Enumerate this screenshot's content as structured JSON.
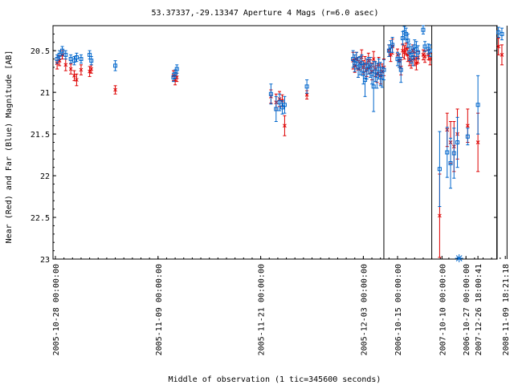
{
  "chart_data": {
    "type": "scatter",
    "title": "53.37337,-29.13347   Aperture 4 Mags (r=6.0 asec)",
    "xlabel": "Middle of observation (1 tic=345600 seconds)",
    "ylabel": "Near (Red) and Far (Blue) Magnitude [AB]",
    "y_inverted": true,
    "ylim": [
      23,
      20.2
    ],
    "y_ticks": [
      "20.5",
      "21",
      "21.5",
      "22",
      "22.5",
      "23"
    ],
    "x_ticks": [
      "2005-10-28 00:00:00",
      "2005-11-09 00:00:00",
      "2005-11-21 00:00:00",
      "2005-12-03 00:00:00",
      "2006-10-15 00:00:00",
      "2006-10-27 00:00:00",
      "2007-10-10 00:00:00",
      "2007-12-26 18:00:41",
      "2008-11-09 18:21:18"
    ],
    "x_units": "tic (1 tic = 345600 seconds), counted from 2005-10-28 00:00:00",
    "segment_breaks_after_tic": [
      9.6,
      11.0,
      12.9,
      13.2
    ],
    "grid": false,
    "legend": "none",
    "colors": {
      "near": "#dd0000",
      "far": "#0066cc",
      "frame": "#000000"
    },
    "series": [
      {
        "color": "#dd0000",
        "marker": "x",
        "points": [
          [
            0.05,
            20.65,
            0.07
          ],
          [
            0.12,
            20.62,
            0.06
          ],
          [
            0.2,
            20.55,
            0.05
          ],
          [
            0.3,
            20.67,
            0.07
          ],
          [
            0.45,
            20.72,
            0.06
          ],
          [
            0.55,
            20.8,
            0.06
          ],
          [
            0.62,
            20.85,
            0.07
          ],
          [
            0.75,
            20.73,
            0.06
          ],
          [
            1.0,
            20.75,
            0.06
          ],
          [
            1.05,
            20.72,
            0.05
          ],
          [
            1.75,
            20.97,
            0.05
          ],
          [
            3.45,
            20.8,
            0.06
          ],
          [
            3.5,
            20.85,
            0.06
          ],
          [
            3.55,
            20.82,
            0.05
          ],
          [
            6.3,
            21.05,
            0.08
          ],
          [
            6.45,
            21.12,
            0.1
          ],
          [
            6.55,
            21.08,
            0.09
          ],
          [
            6.63,
            21.1,
            0.07
          ],
          [
            6.7,
            21.4,
            0.12
          ],
          [
            7.35,
            21.03,
            0.05
          ],
          [
            8.7,
            20.62,
            0.1
          ],
          [
            8.75,
            20.68,
            0.08
          ],
          [
            8.8,
            20.6,
            0.08
          ],
          [
            8.85,
            20.72,
            0.1
          ],
          [
            8.9,
            20.65,
            0.08
          ],
          [
            8.95,
            20.58,
            0.09
          ],
          [
            9.0,
            20.7,
            0.08
          ],
          [
            9.05,
            20.66,
            0.09
          ],
          [
            9.1,
            20.73,
            0.08
          ],
          [
            9.15,
            20.62,
            0.09
          ],
          [
            9.2,
            20.69,
            0.08
          ],
          [
            9.25,
            20.75,
            0.1
          ],
          [
            9.3,
            20.6,
            0.09
          ],
          [
            9.35,
            20.72,
            0.09
          ],
          [
            9.4,
            20.78,
            0.1
          ],
          [
            9.45,
            20.67,
            0.09
          ],
          [
            9.5,
            20.8,
            0.1
          ],
          [
            9.55,
            20.75,
            0.09
          ],
          [
            9.6,
            20.7,
            0.1
          ],
          [
            9.75,
            20.5,
            0.07
          ],
          [
            9.8,
            20.55,
            0.08
          ],
          [
            9.85,
            20.45,
            0.09
          ],
          [
            10.0,
            20.55,
            0.07
          ],
          [
            10.05,
            20.62,
            0.08
          ],
          [
            10.1,
            20.7,
            0.09
          ],
          [
            10.15,
            20.5,
            0.08
          ],
          [
            10.2,
            20.52,
            0.08
          ],
          [
            10.25,
            20.48,
            0.07
          ],
          [
            10.3,
            20.55,
            0.08
          ],
          [
            10.35,
            20.6,
            0.08
          ],
          [
            10.4,
            20.62,
            0.09
          ],
          [
            10.45,
            20.5,
            0.07
          ],
          [
            10.5,
            20.6,
            0.08
          ],
          [
            10.55,
            20.65,
            0.08
          ],
          [
            10.6,
            20.58,
            0.07
          ],
          [
            10.75,
            20.55,
            0.06
          ],
          [
            10.8,
            20.57,
            0.07
          ],
          [
            10.9,
            20.55,
            0.06
          ],
          [
            10.95,
            20.6,
            0.07
          ],
          [
            11.23,
            22.48,
            0.5
          ],
          [
            11.45,
            21.45,
            0.2
          ],
          [
            11.55,
            21.6,
            0.25
          ],
          [
            11.65,
            21.65,
            0.3
          ],
          [
            11.75,
            21.5,
            0.3
          ],
          [
            12.05,
            21.4,
            0.2
          ],
          [
            12.35,
            21.6,
            0.35
          ],
          [
            12.95,
            20.45,
            0.1
          ],
          [
            13.05,
            20.55,
            0.12
          ]
        ]
      },
      {
        "color": "#0066cc",
        "marker": "square",
        "points": [
          [
            0.05,
            20.6,
            0.05
          ],
          [
            0.12,
            20.55,
            0.05
          ],
          [
            0.2,
            20.5,
            0.05
          ],
          [
            0.3,
            20.55,
            0.05
          ],
          [
            0.45,
            20.6,
            0.05
          ],
          [
            0.55,
            20.62,
            0.05
          ],
          [
            0.62,
            20.58,
            0.05
          ],
          [
            0.75,
            20.6,
            0.05
          ],
          [
            1.0,
            20.55,
            0.05
          ],
          [
            1.05,
            20.62,
            0.05
          ],
          [
            1.75,
            20.68,
            0.06
          ],
          [
            3.45,
            20.82,
            0.05
          ],
          [
            3.5,
            20.78,
            0.05
          ],
          [
            3.55,
            20.72,
            0.05
          ],
          [
            6.3,
            21.02,
            0.12
          ],
          [
            6.45,
            21.2,
            0.15
          ],
          [
            6.55,
            21.12,
            0.1
          ],
          [
            6.63,
            21.18,
            0.08
          ],
          [
            6.7,
            21.15,
            0.1
          ],
          [
            7.35,
            20.93,
            0.08
          ],
          [
            8.7,
            20.6,
            0.1
          ],
          [
            8.75,
            20.65,
            0.1
          ],
          [
            8.8,
            20.62,
            0.1
          ],
          [
            8.85,
            20.7,
            0.12
          ],
          [
            8.9,
            20.68,
            0.11
          ],
          [
            8.95,
            20.65,
            0.1
          ],
          [
            9.0,
            20.78,
            0.12
          ],
          [
            9.05,
            20.85,
            0.2
          ],
          [
            9.1,
            20.72,
            0.12
          ],
          [
            9.15,
            20.68,
            0.1
          ],
          [
            9.2,
            20.7,
            0.12
          ],
          [
            9.25,
            20.78,
            0.12
          ],
          [
            9.3,
            20.93,
            0.3
          ],
          [
            9.35,
            20.75,
            0.12
          ],
          [
            9.4,
            20.8,
            0.15
          ],
          [
            9.45,
            20.72,
            0.12
          ],
          [
            9.5,
            20.78,
            0.14
          ],
          [
            9.55,
            20.82,
            0.12
          ],
          [
            9.6,
            20.73,
            0.12
          ],
          [
            9.75,
            20.5,
            0.07
          ],
          [
            9.8,
            20.45,
            0.07
          ],
          [
            9.85,
            20.43,
            0.09
          ],
          [
            10.0,
            20.6,
            0.08
          ],
          [
            10.05,
            20.62,
            0.08
          ],
          [
            10.1,
            20.73,
            0.15
          ],
          [
            10.15,
            20.35,
            0.08
          ],
          [
            10.2,
            20.28,
            0.07
          ],
          [
            10.25,
            20.3,
            0.07
          ],
          [
            10.3,
            20.38,
            0.08
          ],
          [
            10.35,
            20.52,
            0.1
          ],
          [
            10.4,
            20.55,
            0.1
          ],
          [
            10.45,
            20.58,
            0.1
          ],
          [
            10.5,
            20.45,
            0.08
          ],
          [
            10.55,
            20.48,
            0.09
          ],
          [
            10.6,
            20.52,
            0.08
          ],
          [
            10.75,
            20.25,
            0.05
          ],
          [
            10.8,
            20.45,
            0.06
          ],
          [
            10.9,
            20.48,
            0.06
          ],
          [
            10.95,
            20.5,
            0.07
          ],
          [
            11.23,
            21.92,
            0.45
          ],
          [
            11.45,
            21.72,
            0.3
          ],
          [
            11.55,
            21.85,
            0.3
          ],
          [
            11.65,
            21.73,
            0.3
          ],
          [
            11.75,
            21.6,
            0.3
          ],
          [
            12.05,
            21.53,
            0.1
          ],
          [
            12.35,
            21.15,
            0.35
          ],
          [
            12.95,
            20.28,
            0.06
          ],
          [
            13.05,
            20.3,
            0.07
          ]
        ]
      }
    ],
    "off_scale_marker": {
      "tic": 11.8,
      "shape": "asterisk",
      "color": "#0066cc"
    }
  }
}
